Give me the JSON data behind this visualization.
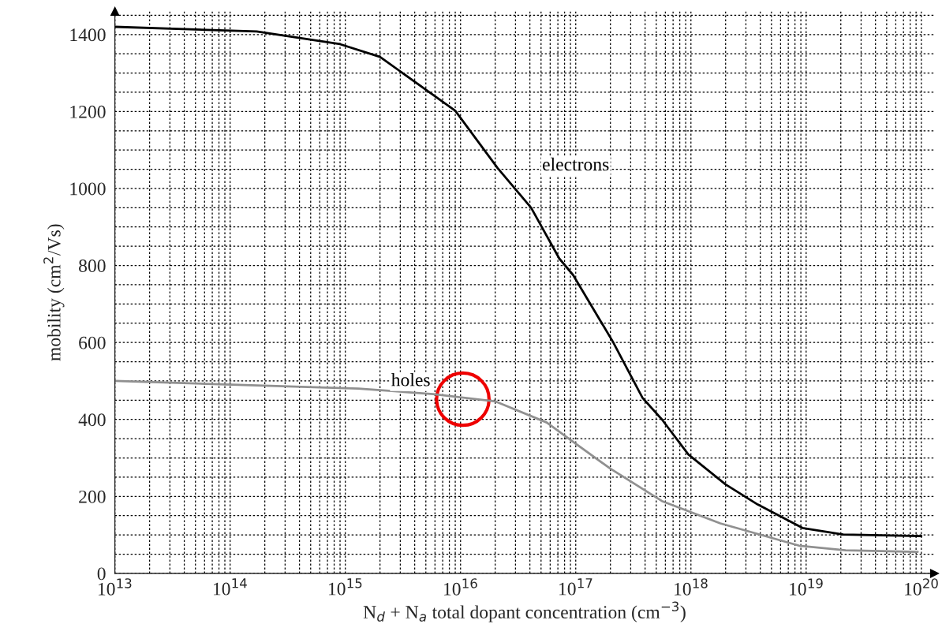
{
  "chart_data": {
    "type": "line",
    "xlabel": "N$_{d}$ + N$_{a}$ total dopant concentration (cm$^{−3}$)",
    "ylabel": "mobility (cm$^{2}$/Vs)",
    "log": "x",
    "grid": true,
    "marker": "none",
    "line_style": "solid",
    "xlim": [
      10000000000000.0,
      1.3e+20
    ],
    "xticks": [
      {
        "value": 10000000000000.0,
        "label": "10$^{13}$"
      },
      {
        "value": 100000000000000.0,
        "label": "10$^{14}$"
      },
      {
        "value": 1000000000000000.0,
        "label": "10$^{15}$"
      },
      {
        "value": 1e+16,
        "label": "10$^{16}$"
      },
      {
        "value": 1e+17,
        "label": "10$^{17}$"
      },
      {
        "value": 1e+18,
        "label": "10$^{18}$"
      },
      {
        "value": 1e+19,
        "label": "10$^{19}$"
      },
      {
        "value": 1e+20,
        "label": "10$^{20}$"
      }
    ],
    "ylim": [
      0,
      1460
    ],
    "yticks": [
      0,
      200,
      400,
      600,
      800,
      1000,
      1200,
      1400
    ],
    "series": [
      {
        "name": "electrons",
        "color": "#000000",
        "x": [
          10000000000000.0,
          170000000000000.0,
          900000000000000.0,
          2000000000000000.0,
          9000000000000000.0,
          2.1e+16,
          4.1e+16,
          7.2e+16,
          9.5e+16,
          2.1e+17,
          3.8e+17,
          5.6e+17,
          9.5e+17,
          2e+18,
          3.8e+18,
          9.3e+18,
          2.1e+19,
          1e+20
        ],
        "values": [
          1420,
          1408,
          1375,
          1342,
          1202,
          1053,
          950,
          818,
          775,
          602,
          456,
          400,
          309,
          231,
          179,
          118,
          101,
          97
        ]
      },
      {
        "name": "holes",
        "color": "#909090",
        "x": [
          10000000000000.0,
          1300000000000000.0,
          5800000000000000.0,
          2e+16,
          5.6e+16,
          9.5e+16,
          2e+17,
          5.6e+17,
          1.8e+18,
          8.7e+18,
          2.2e+19,
          9.3e+19
        ],
        "values": [
          500,
          480,
          466,
          447,
          392,
          342,
          272,
          188,
          130,
          72,
          60,
          56
        ]
      }
    ]
  }
}
